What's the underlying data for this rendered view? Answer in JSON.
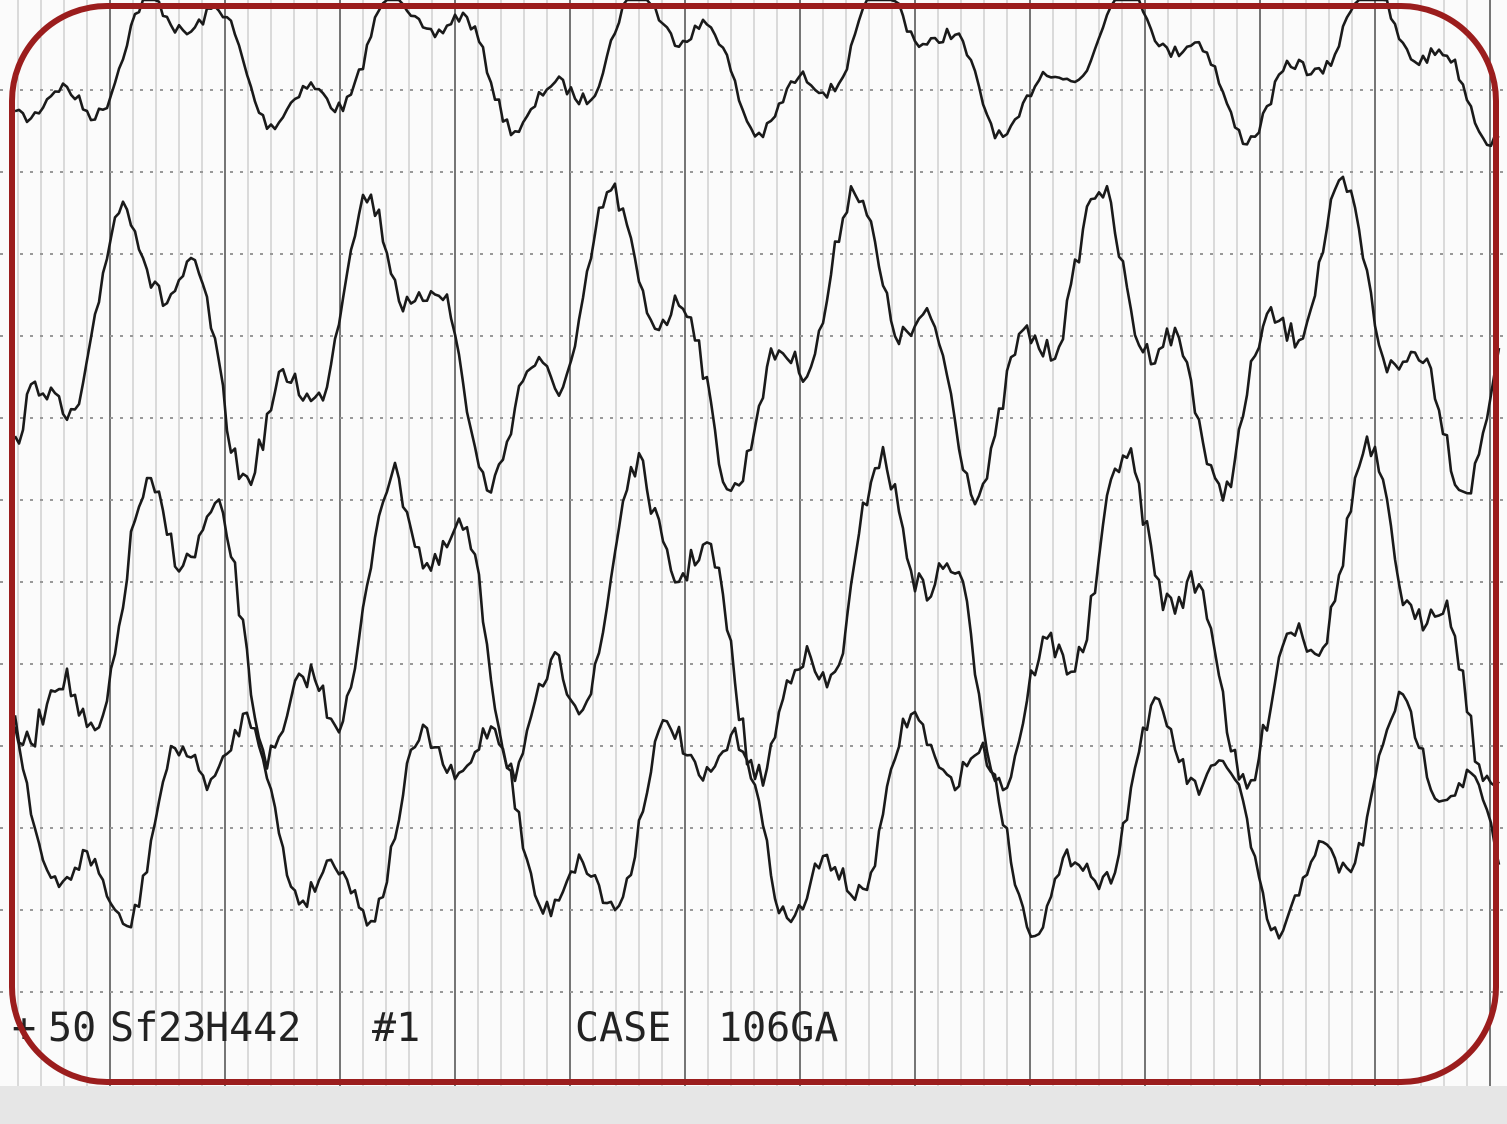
{
  "annotations": [
    "+",
    "50",
    "Sf23",
    "H442",
    "#1",
    "CASE",
    "106GA"
  ]
}
